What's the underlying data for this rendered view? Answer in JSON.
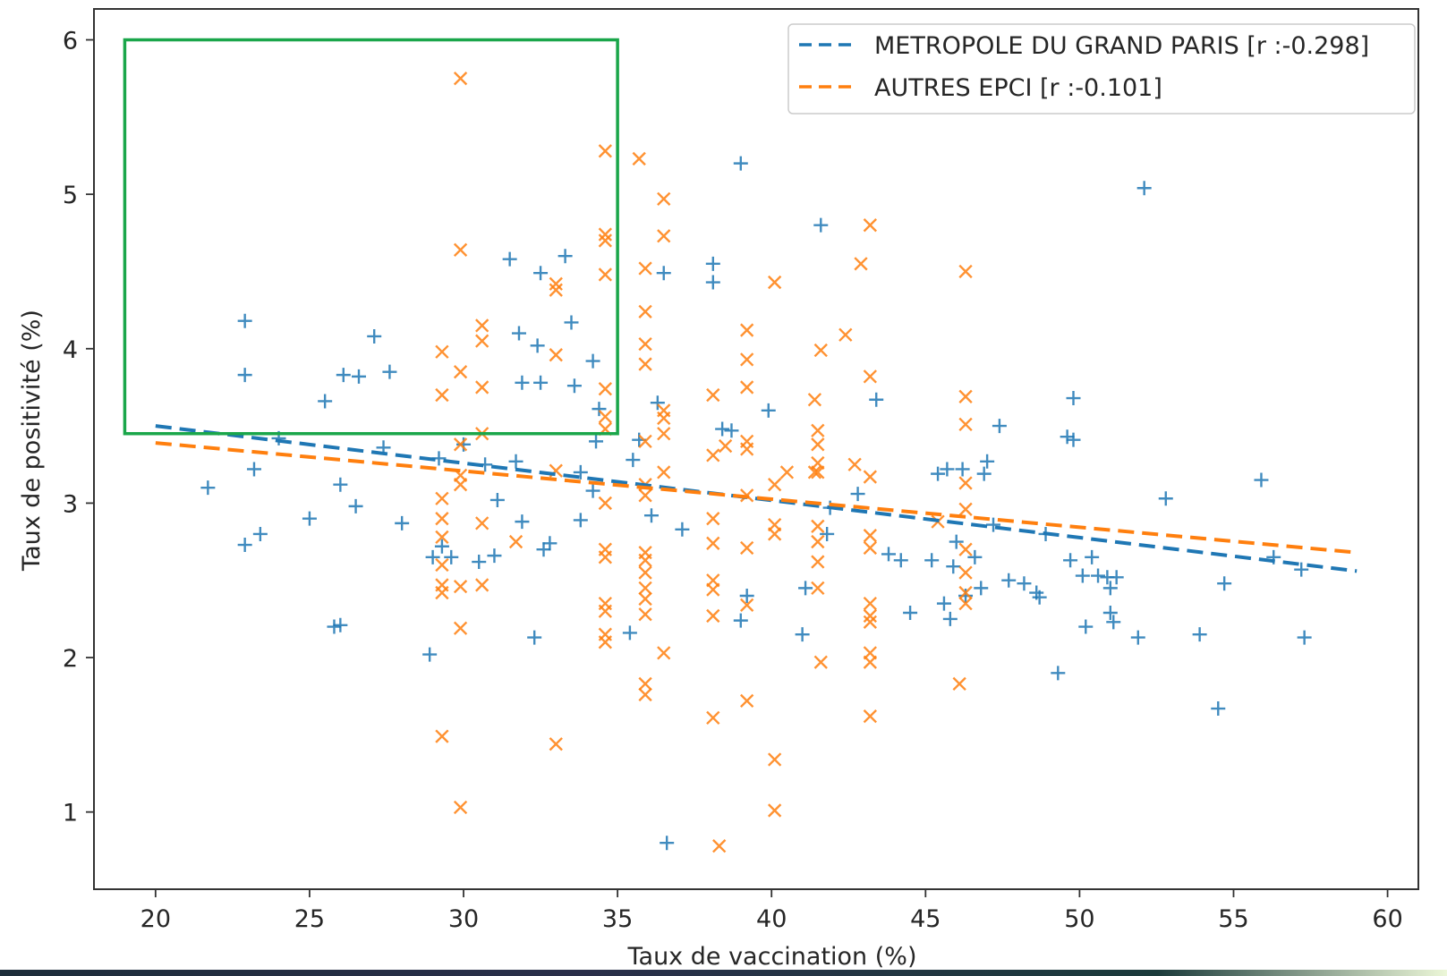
{
  "chart_data": {
    "type": "scatter",
    "xlabel": "Taux de vaccination (%)",
    "ylabel": "Taux de positivité (%)",
    "xlim": [
      18,
      61
    ],
    "ylim": [
      0.5,
      6.2
    ],
    "xticks": [
      "20",
      "25",
      "30",
      "35",
      "40",
      "45",
      "50",
      "55",
      "60"
    ],
    "yticks": [
      "1",
      "2",
      "3",
      "4",
      "5",
      "6"
    ],
    "legend_position": "top-right",
    "grid": false,
    "highlight_box": {
      "x0": 19,
      "x1": 35,
      "y0": 3.45,
      "y1": 6.0,
      "color": "#1aa64a"
    },
    "series": [
      {
        "name": "METROPOLE DU GRAND PARIS [r :-0.298]",
        "color": "#1f77b4",
        "marker": "plus",
        "points": [
          [
            21.7,
            3.1
          ],
          [
            22.9,
            4.18
          ],
          [
            22.9,
            3.83
          ],
          [
            22.9,
            2.73
          ],
          [
            23.2,
            3.22
          ],
          [
            23.4,
            2.8
          ],
          [
            24,
            3.42
          ],
          [
            25,
            2.9
          ],
          [
            25.5,
            3.66
          ],
          [
            25.8,
            2.2
          ],
          [
            26,
            2.21
          ],
          [
            26,
            3.12
          ],
          [
            26.1,
            3.83
          ],
          [
            26.5,
            2.98
          ],
          [
            26.6,
            3.82
          ],
          [
            27.1,
            4.08
          ],
          [
            27.4,
            3.36
          ],
          [
            27.6,
            3.85
          ],
          [
            28,
            2.87
          ],
          [
            28.9,
            2.02
          ],
          [
            29,
            2.65
          ],
          [
            29.2,
            3.29
          ],
          [
            29.3,
            2.72
          ],
          [
            29.6,
            2.65
          ],
          [
            30,
            3.38
          ],
          [
            30.5,
            2.62
          ],
          [
            30.7,
            3.25
          ],
          [
            31,
            2.66
          ],
          [
            31.1,
            3.02
          ],
          [
            31.5,
            4.58
          ],
          [
            31.7,
            3.27
          ],
          [
            31.8,
            4.1
          ],
          [
            31.9,
            3.78
          ],
          [
            31.9,
            2.88
          ],
          [
            32.3,
            2.13
          ],
          [
            32.4,
            4.02
          ],
          [
            32.5,
            4.49
          ],
          [
            32.5,
            3.78
          ],
          [
            32.6,
            2.7
          ],
          [
            32.8,
            2.74
          ],
          [
            33.3,
            4.6
          ],
          [
            33.5,
            4.17
          ],
          [
            33.6,
            3.76
          ],
          [
            33.8,
            2.89
          ],
          [
            33.8,
            3.2
          ],
          [
            34.2,
            3.08
          ],
          [
            34.2,
            3.92
          ],
          [
            34.3,
            3.4
          ],
          [
            34.4,
            3.61
          ],
          [
            35.4,
            2.16
          ],
          [
            35.5,
            3.28
          ],
          [
            35.7,
            3.41
          ],
          [
            36.1,
            2.92
          ],
          [
            36.3,
            3.65
          ],
          [
            36.5,
            4.49
          ],
          [
            36.6,
            0.8
          ],
          [
            37.1,
            2.83
          ],
          [
            38.1,
            4.55
          ],
          [
            38.1,
            4.43
          ],
          [
            38.4,
            3.48
          ],
          [
            38.7,
            3.47
          ],
          [
            39,
            2.24
          ],
          [
            39,
            5.2
          ],
          [
            39.2,
            2.4
          ],
          [
            39.9,
            3.6
          ],
          [
            41,
            2.15
          ],
          [
            41.1,
            2.45
          ],
          [
            41.6,
            4.8
          ],
          [
            41.8,
            2.8
          ],
          [
            41.9,
            2.97
          ],
          [
            42.8,
            3.06
          ],
          [
            43.4,
            3.67
          ],
          [
            43.8,
            2.67
          ],
          [
            44.2,
            2.63
          ],
          [
            44.5,
            2.29
          ],
          [
            45.2,
            2.63
          ],
          [
            45.4,
            3.19
          ],
          [
            45.6,
            2.35
          ],
          [
            45.7,
            3.22
          ],
          [
            45.8,
            2.25
          ],
          [
            45.9,
            2.59
          ],
          [
            46,
            2.75
          ],
          [
            46.2,
            3.22
          ],
          [
            46.3,
            2.4
          ],
          [
            46.6,
            2.65
          ],
          [
            46.8,
            2.45
          ],
          [
            46.9,
            3.19
          ],
          [
            47,
            3.27
          ],
          [
            47.2,
            2.86
          ],
          [
            47.4,
            3.5
          ],
          [
            47.7,
            2.5
          ],
          [
            48.2,
            2.48
          ],
          [
            48.6,
            2.42
          ],
          [
            48.7,
            2.39
          ],
          [
            48.9,
            2.8
          ],
          [
            49.3,
            1.9
          ],
          [
            49.6,
            3.43
          ],
          [
            49.8,
            3.41
          ],
          [
            49.8,
            3.68
          ],
          [
            49.7,
            2.63
          ],
          [
            50.1,
            2.53
          ],
          [
            50.2,
            2.2
          ],
          [
            50.4,
            2.65
          ],
          [
            50.6,
            2.53
          ],
          [
            50.9,
            2.52
          ],
          [
            51,
            2.29
          ],
          [
            51,
            2.45
          ],
          [
            51.1,
            2.23
          ],
          [
            51.2,
            2.52
          ],
          [
            51.9,
            2.13
          ],
          [
            52.1,
            5.04
          ],
          [
            52.8,
            3.03
          ],
          [
            53.9,
            2.15
          ],
          [
            54.5,
            1.67
          ],
          [
            54.7,
            2.48
          ],
          [
            55.9,
            3.15
          ],
          [
            56.3,
            2.65
          ],
          [
            57.2,
            2.57
          ],
          [
            57.3,
            2.13
          ]
        ]
      },
      {
        "name": "AUTRES EPCI [r :-0.101]",
        "color": "#ff7f0e",
        "marker": "x",
        "points": [
          [
            29.9,
            5.75
          ],
          [
            29.9,
            4.64
          ],
          [
            29.3,
            3.98
          ],
          [
            29.9,
            3.85
          ],
          [
            29.3,
            3.7
          ],
          [
            29.9,
            3.38
          ],
          [
            29.9,
            3.18
          ],
          [
            29.9,
            3.12
          ],
          [
            29.3,
            3.03
          ],
          [
            29.3,
            2.9
          ],
          [
            29.3,
            2.78
          ],
          [
            29.3,
            2.6
          ],
          [
            29.3,
            2.47
          ],
          [
            29.3,
            2.42
          ],
          [
            29.9,
            2.46
          ],
          [
            29.9,
            2.19
          ],
          [
            29.3,
            1.49
          ],
          [
            29.9,
            1.03
          ],
          [
            30.6,
            4.15
          ],
          [
            30.6,
            4.05
          ],
          [
            30.6,
            3.75
          ],
          [
            30.6,
            3.45
          ],
          [
            30.6,
            2.87
          ],
          [
            30.6,
            2.47
          ],
          [
            31.7,
            2.75
          ],
          [
            33,
            4.42
          ],
          [
            33,
            4.38
          ],
          [
            33,
            3.96
          ],
          [
            33,
            3.21
          ],
          [
            33,
            1.44
          ],
          [
            34.6,
            5.28
          ],
          [
            34.6,
            4.74
          ],
          [
            34.6,
            4.7
          ],
          [
            34.6,
            4.48
          ],
          [
            34.6,
            3.74
          ],
          [
            34.6,
            3.56
          ],
          [
            34.6,
            3.48
          ],
          [
            34.6,
            3
          ],
          [
            34.6,
            2.7
          ],
          [
            34.6,
            2.65
          ],
          [
            34.6,
            2.35
          ],
          [
            34.6,
            2.3
          ],
          [
            34.6,
            2.15
          ],
          [
            34.6,
            2.1
          ],
          [
            35.7,
            5.23
          ],
          [
            35.9,
            4.52
          ],
          [
            35.9,
            4.24
          ],
          [
            35.9,
            4.03
          ],
          [
            35.9,
            3.9
          ],
          [
            35.9,
            3.4
          ],
          [
            35.9,
            3.12
          ],
          [
            35.9,
            3.05
          ],
          [
            35.9,
            2.68
          ],
          [
            35.9,
            2.63
          ],
          [
            35.9,
            2.55
          ],
          [
            35.9,
            2.45
          ],
          [
            35.9,
            2.38
          ],
          [
            35.9,
            2.28
          ],
          [
            35.9,
            1.83
          ],
          [
            35.9,
            1.76
          ],
          [
            36.5,
            4.97
          ],
          [
            36.5,
            4.73
          ],
          [
            36.5,
            3.6
          ],
          [
            36.5,
            3.55
          ],
          [
            36.5,
            3.45
          ],
          [
            36.5,
            3.2
          ],
          [
            36.5,
            2.03
          ],
          [
            38.1,
            3.7
          ],
          [
            38.1,
            3.31
          ],
          [
            38.1,
            2.9
          ],
          [
            38.1,
            2.74
          ],
          [
            38.1,
            2.5
          ],
          [
            38.1,
            2.44
          ],
          [
            38.1,
            2.27
          ],
          [
            38.1,
            1.61
          ],
          [
            38.3,
            0.78
          ],
          [
            38.5,
            3.37
          ],
          [
            39.2,
            4.12
          ],
          [
            39.2,
            3.93
          ],
          [
            39.2,
            3.75
          ],
          [
            39.2,
            3.4
          ],
          [
            39.2,
            3.35
          ],
          [
            39.2,
            3.05
          ],
          [
            39.2,
            2.71
          ],
          [
            39.2,
            2.34
          ],
          [
            39.2,
            1.72
          ],
          [
            40.1,
            4.43
          ],
          [
            40.1,
            3.12
          ],
          [
            40.1,
            2.86
          ],
          [
            40.1,
            2.8
          ],
          [
            40.1,
            1.34
          ],
          [
            40.1,
            1.01
          ],
          [
            40.5,
            3.2
          ],
          [
            41.4,
            3.67
          ],
          [
            41.4,
            3.2
          ],
          [
            41.5,
            3.47
          ],
          [
            41.5,
            3.38
          ],
          [
            41.5,
            3.26
          ],
          [
            41.5,
            3.2
          ],
          [
            41.5,
            2.85
          ],
          [
            41.5,
            2.75
          ],
          [
            41.5,
            2.62
          ],
          [
            41.5,
            2.45
          ],
          [
            41.6,
            3.99
          ],
          [
            41.6,
            1.97
          ],
          [
            42.4,
            4.09
          ],
          [
            42.7,
            3.25
          ],
          [
            43.2,
            4.8
          ],
          [
            43.2,
            3.82
          ],
          [
            43.2,
            3.17
          ],
          [
            43.2,
            2.79
          ],
          [
            43.2,
            2.71
          ],
          [
            43.2,
            2.35
          ],
          [
            43.2,
            2.27
          ],
          [
            43.2,
            2.23
          ],
          [
            43.2,
            2.03
          ],
          [
            43.2,
            1.97
          ],
          [
            43.2,
            1.62
          ],
          [
            42.9,
            4.55
          ],
          [
            46.3,
            4.5
          ],
          [
            46.3,
            3.69
          ],
          [
            46.3,
            3.51
          ],
          [
            46.3,
            3.13
          ],
          [
            46.3,
            2.96
          ],
          [
            46.3,
            2.7
          ],
          [
            46.3,
            2.55
          ],
          [
            46.3,
            2.42
          ],
          [
            46.3,
            2.35
          ],
          [
            46.1,
            1.83
          ],
          [
            45.4,
            2.88
          ]
        ]
      }
    ],
    "trendlines": [
      {
        "series": "METROPOLE DU GRAND PARIS [r :-0.298]",
        "x": [
          20,
          59
        ],
        "y": [
          3.5,
          2.56
        ],
        "style": "dashed"
      },
      {
        "series": "AUTRES EPCI [r :-0.101]",
        "x": [
          20,
          59
        ],
        "y": [
          3.39,
          2.68
        ],
        "style": "dashed"
      }
    ]
  }
}
